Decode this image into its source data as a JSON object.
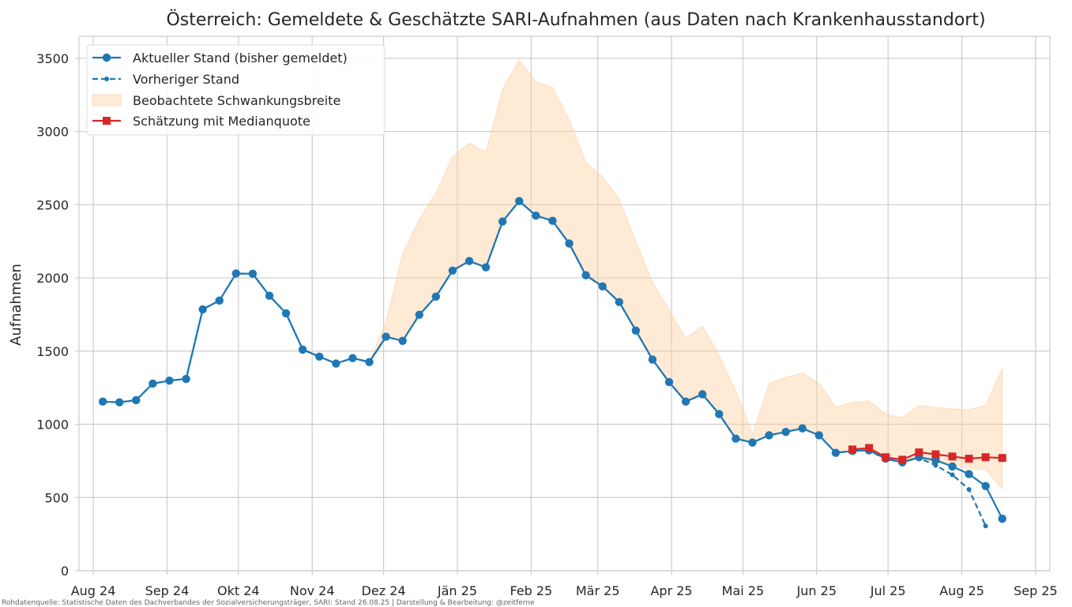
{
  "chart_data": {
    "type": "line",
    "title": "Österreich: Gemeldete & Geschätzte SARI-Aufnahmen (aus Daten nach Krankenhausstandort)",
    "ylabel": "Aufnahmen",
    "xlabel": "",
    "ylim": [
      0,
      3650
    ],
    "xlim": [
      "2024-07-26",
      "2025-09-07"
    ],
    "yticks": [
      0,
      500,
      1000,
      1500,
      2000,
      2500,
      3000,
      3500
    ],
    "xticks": [
      {
        "date": "2024-08-01",
        "label": "Aug 24"
      },
      {
        "date": "2024-09-01",
        "label": "Sep 24"
      },
      {
        "date": "2024-10-01",
        "label": "Okt 24"
      },
      {
        "date": "2024-11-01",
        "label": "Nov 24"
      },
      {
        "date": "2024-12-01",
        "label": "Dez 24"
      },
      {
        "date": "2025-01-01",
        "label": "Jän 25"
      },
      {
        "date": "2025-02-01",
        "label": "Feb 25"
      },
      {
        "date": "2025-03-01",
        "label": "Mär 25"
      },
      {
        "date": "2025-04-01",
        "label": "Apr 25"
      },
      {
        "date": "2025-05-01",
        "label": "Mai 25"
      },
      {
        "date": "2025-06-01",
        "label": "Jun 25"
      },
      {
        "date": "2025-07-01",
        "label": "Jul 25"
      },
      {
        "date": "2025-08-01",
        "label": "Aug 25"
      },
      {
        "date": "2025-09-01",
        "label": "Sep 25"
      }
    ],
    "grid": true,
    "legend_position": "top-left",
    "colors": {
      "current": "#1f77b4",
      "previous": "#1f77b4",
      "band": "#fdd0a2",
      "estimate": "#d62728"
    },
    "legend": [
      {
        "key": "current",
        "label": "Aktueller Stand (bisher gemeldet)"
      },
      {
        "key": "previous",
        "label": "Vorheriger Stand"
      },
      {
        "key": "band",
        "label": "Beobachtete Schwankungsbreite"
      },
      {
        "key": "estimate",
        "label": "Schätzung mit Medianquote"
      }
    ],
    "series": [
      {
        "name": "Aktueller Stand (bisher gemeldet)",
        "x": [
          "2024-08-05",
          "2024-08-12",
          "2024-08-19",
          "2024-08-26",
          "2024-09-02",
          "2024-09-09",
          "2024-09-16",
          "2024-09-23",
          "2024-09-30",
          "2024-10-07",
          "2024-10-14",
          "2024-10-21",
          "2024-10-28",
          "2024-11-04",
          "2024-11-11",
          "2024-11-18",
          "2024-11-25",
          "2024-12-02",
          "2024-12-09",
          "2024-12-16",
          "2024-12-23",
          "2024-12-30",
          "2025-01-06",
          "2025-01-13",
          "2025-01-20",
          "2025-01-27",
          "2025-02-03",
          "2025-02-10",
          "2025-02-17",
          "2025-02-24",
          "2025-03-03",
          "2025-03-10",
          "2025-03-17",
          "2025-03-24",
          "2025-03-31",
          "2025-04-07",
          "2025-04-14",
          "2025-04-21",
          "2025-04-28",
          "2025-05-05",
          "2025-05-12",
          "2025-05-19",
          "2025-05-26",
          "2025-06-02",
          "2025-06-09",
          "2025-06-16",
          "2025-06-23",
          "2025-06-30",
          "2025-07-07",
          "2025-07-14",
          "2025-07-21",
          "2025-07-28",
          "2025-08-04",
          "2025-08-11",
          "2025-08-18"
        ],
        "values": [
          1155,
          1150,
          1165,
          1278,
          1298,
          1310,
          1785,
          1845,
          2030,
          2028,
          1878,
          1758,
          1510,
          1462,
          1415,
          1452,
          1425,
          1598,
          1570,
          1748,
          1872,
          2050,
          2115,
          2072,
          2385,
          2525,
          2425,
          2390,
          2235,
          2018,
          1942,
          1835,
          1640,
          1442,
          1288,
          1155,
          1205,
          1070,
          902,
          875,
          925,
          948,
          972,
          925,
          805,
          818,
          822,
          765,
          740,
          775,
          755,
          712,
          660,
          578,
          355
        ]
      },
      {
        "name": "Vorheriger Stand",
        "x": [
          "2024-08-05",
          "2024-08-12",
          "2024-08-19",
          "2024-08-26",
          "2024-09-02",
          "2024-09-09",
          "2024-09-16",
          "2024-09-23",
          "2024-09-30",
          "2024-10-07",
          "2024-10-14",
          "2024-10-21",
          "2024-10-28",
          "2024-11-04",
          "2024-11-11",
          "2024-11-18",
          "2024-11-25",
          "2024-12-02",
          "2024-12-09",
          "2024-12-16",
          "2024-12-23",
          "2024-12-30",
          "2025-01-06",
          "2025-01-13",
          "2025-01-20",
          "2025-01-27",
          "2025-02-03",
          "2025-02-10",
          "2025-02-17",
          "2025-02-24",
          "2025-03-03",
          "2025-03-10",
          "2025-03-17",
          "2025-03-24",
          "2025-03-31",
          "2025-04-07",
          "2025-04-14",
          "2025-04-21",
          "2025-04-28",
          "2025-05-05",
          "2025-05-12",
          "2025-05-19",
          "2025-05-26",
          "2025-06-02",
          "2025-06-09",
          "2025-06-16",
          "2025-06-23",
          "2025-06-30",
          "2025-07-07",
          "2025-07-14",
          "2025-07-21",
          "2025-07-28",
          "2025-08-04",
          "2025-08-11"
        ],
        "values": [
          1155,
          1150,
          1165,
          1278,
          1298,
          1310,
          1785,
          1845,
          2030,
          2028,
          1878,
          1758,
          1510,
          1462,
          1415,
          1452,
          1425,
          1598,
          1570,
          1748,
          1872,
          2050,
          2115,
          2072,
          2385,
          2525,
          2425,
          2390,
          2235,
          2018,
          1942,
          1835,
          1640,
          1442,
          1288,
          1155,
          1205,
          1070,
          902,
          875,
          925,
          948,
          972,
          925,
          805,
          818,
          822,
          760,
          745,
          770,
          720,
          655,
          555,
          305
        ]
      },
      {
        "name": "Schätzung mit Medianquote",
        "x": [
          "2025-06-16",
          "2025-06-23",
          "2025-06-30",
          "2025-07-07",
          "2025-07-14",
          "2025-07-21",
          "2025-07-28",
          "2025-08-04",
          "2025-08-11",
          "2025-08-18"
        ],
        "values": [
          828,
          838,
          775,
          758,
          808,
          795,
          780,
          765,
          775,
          770
        ]
      }
    ],
    "band": {
      "name": "Beobachtete Schwankungsbreite",
      "x": [
        "2024-11-25",
        "2024-12-02",
        "2024-12-09",
        "2024-12-16",
        "2024-12-23",
        "2024-12-30",
        "2025-01-06",
        "2025-01-13",
        "2025-01-20",
        "2025-01-27",
        "2025-02-03",
        "2025-02-10",
        "2025-02-17",
        "2025-02-24",
        "2025-03-03",
        "2025-03-10",
        "2025-03-17",
        "2025-03-24",
        "2025-03-31",
        "2025-04-07",
        "2025-04-14",
        "2025-04-21",
        "2025-04-28",
        "2025-05-05",
        "2025-05-12",
        "2025-05-19",
        "2025-05-26",
        "2025-06-02",
        "2025-06-09",
        "2025-06-16",
        "2025-06-23",
        "2025-06-30",
        "2025-07-07",
        "2025-07-14",
        "2025-07-21",
        "2025-07-28",
        "2025-08-04",
        "2025-08-11",
        "2025-08-18"
      ],
      "upper": [
        1425,
        1700,
        2170,
        2400,
        2580,
        2830,
        2920,
        2860,
        3290,
        3490,
        3340,
        3300,
        3080,
        2790,
        2690,
        2540,
        2250,
        1970,
        1780,
        1590,
        1670,
        1470,
        1230,
        930,
        1280,
        1320,
        1350,
        1280,
        1120,
        1150,
        1160,
        1070,
        1045,
        1130,
        1115,
        1105,
        1100,
        1130,
        1385
      ],
      "lower": [
        1425,
        1598,
        1570,
        1748,
        1872,
        2050,
        2115,
        2072,
        2385,
        2525,
        2425,
        2390,
        2235,
        2018,
        1942,
        1835,
        1640,
        1442,
        1288,
        1155,
        1205,
        1070,
        902,
        875,
        925,
        948,
        972,
        925,
        805,
        818,
        822,
        765,
        740,
        760,
        740,
        720,
        700,
        690,
        560
      ]
    },
    "footnote": "Rohdatenquelle: Statistische Daten des Dachverbandes der Sozialversicherungsträger, SARI: Stand 26.08.25 | Darstellung & Bearbeitung: @zeitferne"
  }
}
